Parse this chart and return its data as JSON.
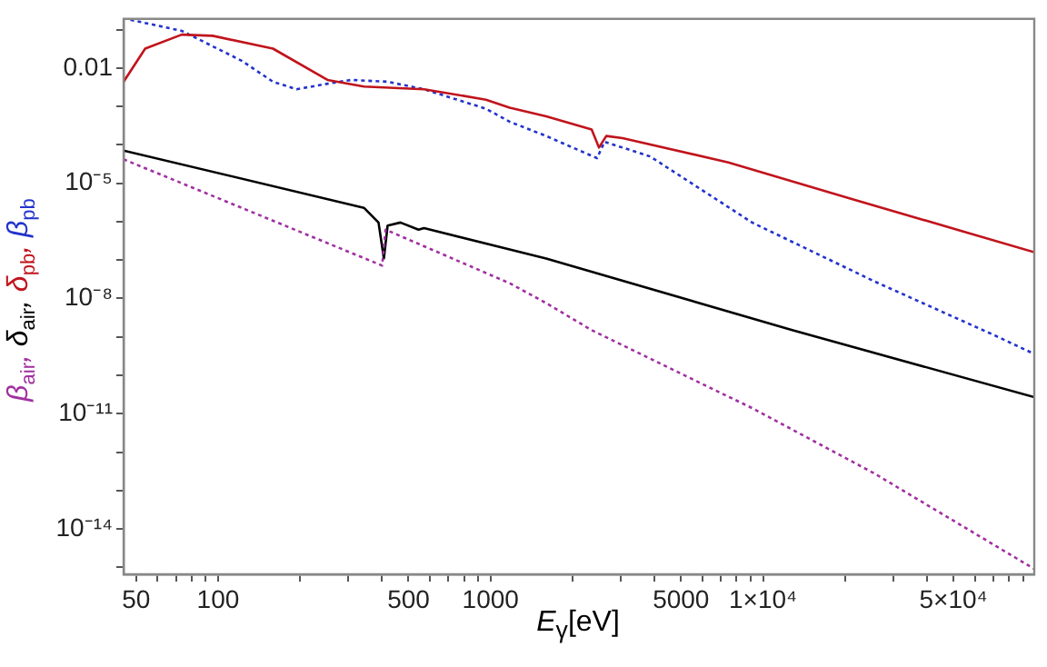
{
  "chart_data": {
    "type": "line",
    "xlabel": "E$_{γ}$[eV]",
    "ylabel": "β$_{air}$, δ$_{air}$, δ$_{pb}$, β$_{pb}$",
    "log": "xy",
    "grid": false,
    "marker": "none",
    "xlim": [
      45,
      99000
    ],
    "ylim": [
      6.6e-16,
      0.19
    ],
    "xticks": [
      50,
      {
        "value": 60,
        "label": null
      },
      {
        "value": 70,
        "label": null
      },
      {
        "value": 80,
        "label": null
      },
      {
        "value": 90,
        "label": null
      },
      100,
      {
        "value": 200,
        "label": null
      },
      {
        "value": 300,
        "label": null
      },
      {
        "value": 400,
        "label": null
      },
      500,
      {
        "value": 600,
        "label": null
      },
      {
        "value": 700,
        "label": null
      },
      {
        "value": 800,
        "label": null
      },
      {
        "value": 900,
        "label": null
      },
      1000,
      {
        "value": 2000,
        "label": null
      },
      {
        "value": 3000,
        "label": null
      },
      {
        "value": 4000,
        "label": null
      },
      5000,
      {
        "value": 6000,
        "label": null
      },
      {
        "value": 7000,
        "label": null
      },
      {
        "value": 8000,
        "label": null
      },
      {
        "value": 9000,
        "label": null
      },
      {
        "value": 10000,
        "label": "1×10⁴"
      },
      {
        "value": 20000,
        "label": null
      },
      {
        "value": 30000,
        "label": null
      },
      {
        "value": 40000,
        "label": null
      },
      {
        "value": 50000,
        "label": "5×10⁴"
      },
      {
        "value": 60000,
        "label": null
      },
      {
        "value": 70000,
        "label": null
      },
      {
        "value": 80000,
        "label": null
      },
      {
        "value": 90000,
        "label": null
      }
    ],
    "yticks": [
      {
        "value": 0.1,
        "label": null
      },
      0.01,
      {
        "value": 0.001,
        "label": null
      },
      {
        "value": 0.0001,
        "label": null
      },
      {
        "value": 1e-05,
        "label": "10⁻⁵"
      },
      {
        "value": 1e-06,
        "label": null
      },
      {
        "value": 1e-07,
        "label": null
      },
      {
        "value": 1e-08,
        "label": "10⁻⁸"
      },
      {
        "value": 1e-09,
        "label": null
      },
      {
        "value": 1e-10,
        "label": null
      },
      {
        "value": 1e-11,
        "label": "10⁻¹¹"
      },
      {
        "value": 1e-12,
        "label": null
      },
      {
        "value": 1e-13,
        "label": null
      },
      {
        "value": 1e-14,
        "label": "10⁻¹⁴"
      },
      {
        "value": 1e-15,
        "label": null
      }
    ],
    "series": [
      {
        "color": "#a030a0",
        "line_style": "dotted",
        "x": [
          45,
          400,
          412,
          1175,
          1600,
          2350,
          9120,
          25600,
          99000
        ],
        "values": [
          4.2e-05,
          7.2e-08,
          6.2e-07,
          2.5e-08,
          7.6e-09,
          1.5e-09,
          1.4e-11,
          2.8e-13,
          9.1e-16
        ]
      },
      {
        "color": "#000000",
        "line_style": "solid",
        "x": [
          45,
          343,
          388,
          406,
          419,
          467,
          544,
          570,
          1175,
          1600,
          12800,
          99000
        ],
        "values": [
          7.1e-05,
          2.3e-06,
          9.5e-07,
          1.1e-07,
          7.9e-07,
          9.5e-07,
          6.2e-07,
          6.8e-07,
          1.9e-07,
          1.1e-07,
          1.5e-09,
          2.7e-11
        ]
      },
      {
        "color": "#c0141c",
        "line_style": "solid",
        "x": [
          45,
          54,
          73.5,
          95.5,
          159,
          252,
          343,
          570,
          962,
          1175,
          1600,
          2350,
          2500,
          2660,
          3050,
          7460,
          20900,
          99000
        ],
        "values": [
          0.0044,
          0.032,
          0.074,
          0.069,
          0.032,
          0.0049,
          0.0033,
          0.0028,
          0.0015,
          0.00093,
          0.00055,
          0.00025,
          8.5e-05,
          0.00017,
          0.00015,
          3.5e-05,
          4e-06,
          1.6e-07
        ]
      },
      {
        "color": "#2233cc",
        "line_style": "dotted",
        "x": [
          47.7,
          73.5,
          122,
          159,
          194,
          252,
          308,
          419,
          570,
          962,
          1175,
          1600,
          2460,
          2620,
          3850,
          9120,
          25600,
          71800,
          99000
        ],
        "values": [
          0.18,
          0.093,
          0.0155,
          0.0044,
          0.0028,
          0.0039,
          0.0049,
          0.0044,
          0.0028,
          0.00087,
          0.0004,
          0.00017,
          4.5e-05,
          0.00012,
          5e-05,
          9.5e-07,
          2.8e-08,
          1.05e-09,
          3.6e-10
        ]
      }
    ]
  }
}
